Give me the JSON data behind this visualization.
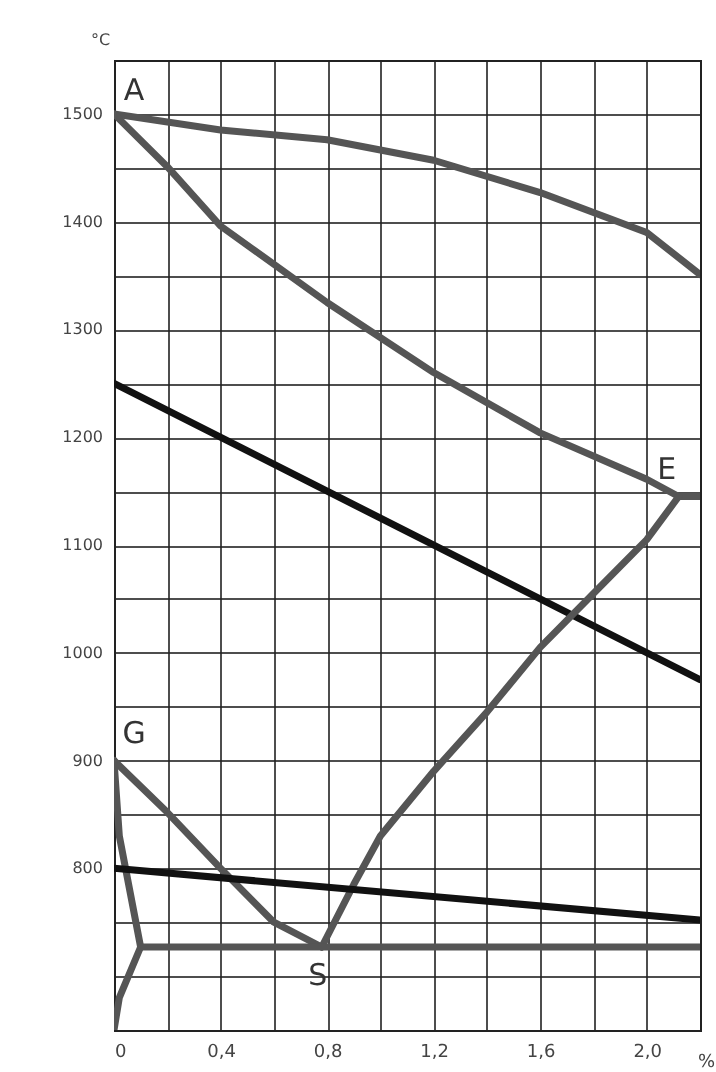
{
  "chart_data": {
    "type": "line",
    "xlabel": "%",
    "ylabel": "°C",
    "xlim": [
      0,
      2.2
    ],
    "ylim": [
      650,
      1550
    ],
    "xticks": [
      0,
      {
        "value": 0.2,
        "label": null
      },
      {
        "value": 0.4,
        "label": "0,4"
      },
      {
        "value": 0.6,
        "label": null
      },
      {
        "value": 0.8,
        "label": "0,8"
      },
      {
        "value": 1.0,
        "label": null
      },
      {
        "value": 1.2,
        "label": "1,2"
      },
      {
        "value": 1.4,
        "label": null
      },
      {
        "value": 1.6,
        "label": "1,6"
      },
      {
        "value": 1.8,
        "label": null
      },
      {
        "value": 2.0,
        "label": "2,0"
      },
      {
        "value": 2.2,
        "label": null
      }
    ],
    "yticks": [
      {
        "value": 650,
        "label": null
      },
      {
        "value": 700,
        "label": null
      },
      {
        "value": 750,
        "label": null
      },
      800,
      {
        "value": 850,
        "label": null
      },
      900,
      {
        "value": 950,
        "label": null
      },
      1000,
      {
        "value": 1050,
        "label": null
      },
      1100,
      {
        "value": 1150,
        "label": null
      },
      1200,
      {
        "value": 1250,
        "label": null
      },
      1300,
      {
        "value": 1350,
        "label": null
      },
      1400,
      {
        "value": 1450,
        "label": null
      },
      1500,
      {
        "value": 1550,
        "label": null
      }
    ],
    "grid": true,
    "line_style": "solid",
    "series": [
      {
        "color": "#555555",
        "x": [
          0,
          0.4,
          0.8,
          1.2,
          1.6,
          2.0,
          2.2
        ],
        "values": [
          1500,
          1485,
          1476,
          1457,
          1427,
          1390,
          1351
        ]
      },
      {
        "color": "#555555",
        "x": [
          0,
          0.2,
          0.4,
          0.8,
          1.2,
          1.6,
          2.0,
          2.12,
          2.2
        ],
        "values": [
          1500,
          1451,
          1396,
          1325,
          1260,
          1204,
          1161,
          1145,
          1145
        ]
      },
      {
        "color": "#111111",
        "x": [
          0,
          2.2
        ],
        "values": [
          1250,
          975
        ]
      },
      {
        "color": "#555555",
        "x": [
          0.78,
          0.9,
          1.0,
          1.2,
          1.4,
          1.6,
          1.8,
          2.0,
          2.12
        ],
        "values": [
          727,
          785,
          830,
          890,
          945,
          1005,
          1055,
          1105,
          1145
        ]
      },
      {
        "color": "#555555",
        "x": [
          0,
          0.2,
          0.4,
          0.6,
          0.78
        ],
        "values": [
          900,
          852,
          800,
          750,
          727
        ]
      },
      {
        "color": "#555555",
        "x": [
          0,
          0.02,
          0.1,
          0.02,
          0
        ],
        "values": [
          900,
          830,
          727,
          680,
          650
        ]
      },
      {
        "color": "#111111",
        "x": [
          0,
          2.2
        ],
        "values": [
          800,
          752
        ]
      },
      {
        "color": "#555555",
        "x": [
          0.1,
          2.2
        ],
        "values": [
          727,
          727
        ]
      }
    ],
    "annotations": [
      {
        "text": "A",
        "x": 0,
        "y": 1500
      },
      {
        "text": "E",
        "x": 2.12,
        "y": 1145
      },
      {
        "text": "G",
        "x": 0,
        "y": 900
      },
      {
        "text": "S",
        "x": 0.78,
        "y": 727
      }
    ]
  }
}
